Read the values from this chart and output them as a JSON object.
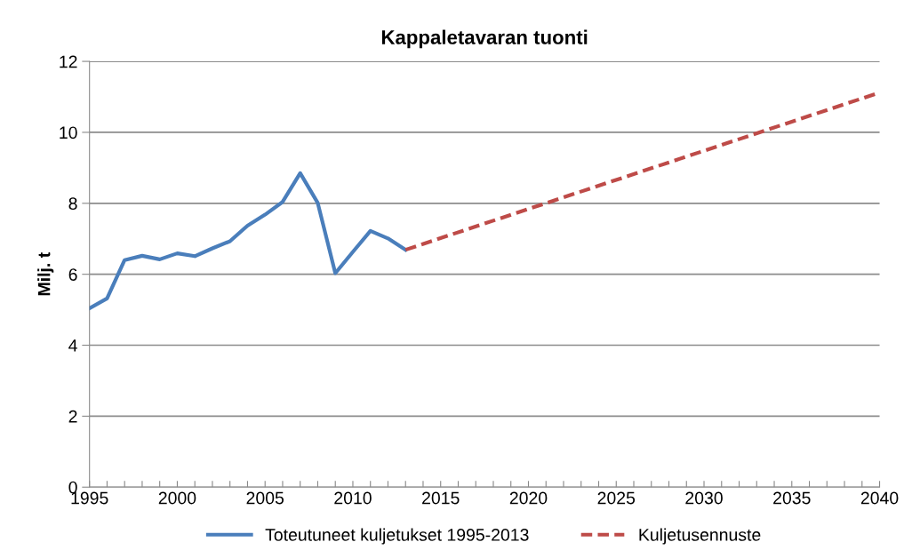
{
  "chart_data": {
    "type": "line",
    "title": "Kappaletavaran tuonti",
    "ylabel": "Milj. t",
    "series": [
      {
        "name": "Toteutuneet kuljetukset 1995-2013",
        "color": "#4a7ebb",
        "line_style": "solid",
        "x": [
          1995,
          1996,
          1997,
          1998,
          1999,
          2000,
          2001,
          2002,
          2003,
          2004,
          2005,
          2006,
          2007,
          2008,
          2009,
          2010,
          2011,
          2012,
          2013
        ],
        "values": [
          5.04,
          5.32,
          6.4,
          6.52,
          6.42,
          6.59,
          6.51,
          6.73,
          6.93,
          7.37,
          7.68,
          8.04,
          8.85,
          8.01,
          6.03,
          6.63,
          7.22,
          7.01,
          6.69
        ]
      },
      {
        "name": "Kuljetusennuste",
        "color": "#be4b48",
        "line_style": "dashed",
        "x": [
          2013,
          2020,
          2030,
          2040
        ],
        "values": [
          6.69,
          7.84,
          9.48,
          11.12
        ]
      }
    ],
    "xlim": [
      1995,
      2040
    ],
    "xticks": [
      1995,
      {
        "value": 1996,
        "label": null
      },
      {
        "value": 1997,
        "label": null
      },
      {
        "value": 1998,
        "label": null
      },
      {
        "value": 1999,
        "label": null
      },
      2000,
      {
        "value": 2001,
        "label": null
      },
      {
        "value": 2002,
        "label": null
      },
      {
        "value": 2003,
        "label": null
      },
      {
        "value": 2004,
        "label": null
      },
      2005,
      {
        "value": 2006,
        "label": null
      },
      {
        "value": 2007,
        "label": null
      },
      {
        "value": 2008,
        "label": null
      },
      {
        "value": 2009,
        "label": null
      },
      2010,
      {
        "value": 2011,
        "label": null
      },
      {
        "value": 2012,
        "label": null
      },
      {
        "value": 2013,
        "label": null
      },
      {
        "value": 2014,
        "label": null
      },
      2015,
      {
        "value": 2016,
        "label": null
      },
      {
        "value": 2017,
        "label": null
      },
      {
        "value": 2018,
        "label": null
      },
      {
        "value": 2019,
        "label": null
      },
      2020,
      {
        "value": 2021,
        "label": null
      },
      {
        "value": 2022,
        "label": null
      },
      {
        "value": 2023,
        "label": null
      },
      {
        "value": 2024,
        "label": null
      },
      2025,
      {
        "value": 2026,
        "label": null
      },
      {
        "value": 2027,
        "label": null
      },
      {
        "value": 2028,
        "label": null
      },
      {
        "value": 2029,
        "label": null
      },
      2030,
      {
        "value": 2031,
        "label": null
      },
      {
        "value": 2032,
        "label": null
      },
      {
        "value": 2033,
        "label": null
      },
      {
        "value": 2034,
        "label": null
      },
      2035,
      {
        "value": 2036,
        "label": null
      },
      {
        "value": 2037,
        "label": null
      },
      {
        "value": 2038,
        "label": null
      },
      {
        "value": 2039,
        "label": null
      },
      2040
    ],
    "ylim": [
      0,
      12
    ],
    "yticks": [
      0,
      2,
      4,
      6,
      8,
      10,
      12
    ],
    "grid": "y",
    "legend": "bottom",
    "marker": "none"
  }
}
